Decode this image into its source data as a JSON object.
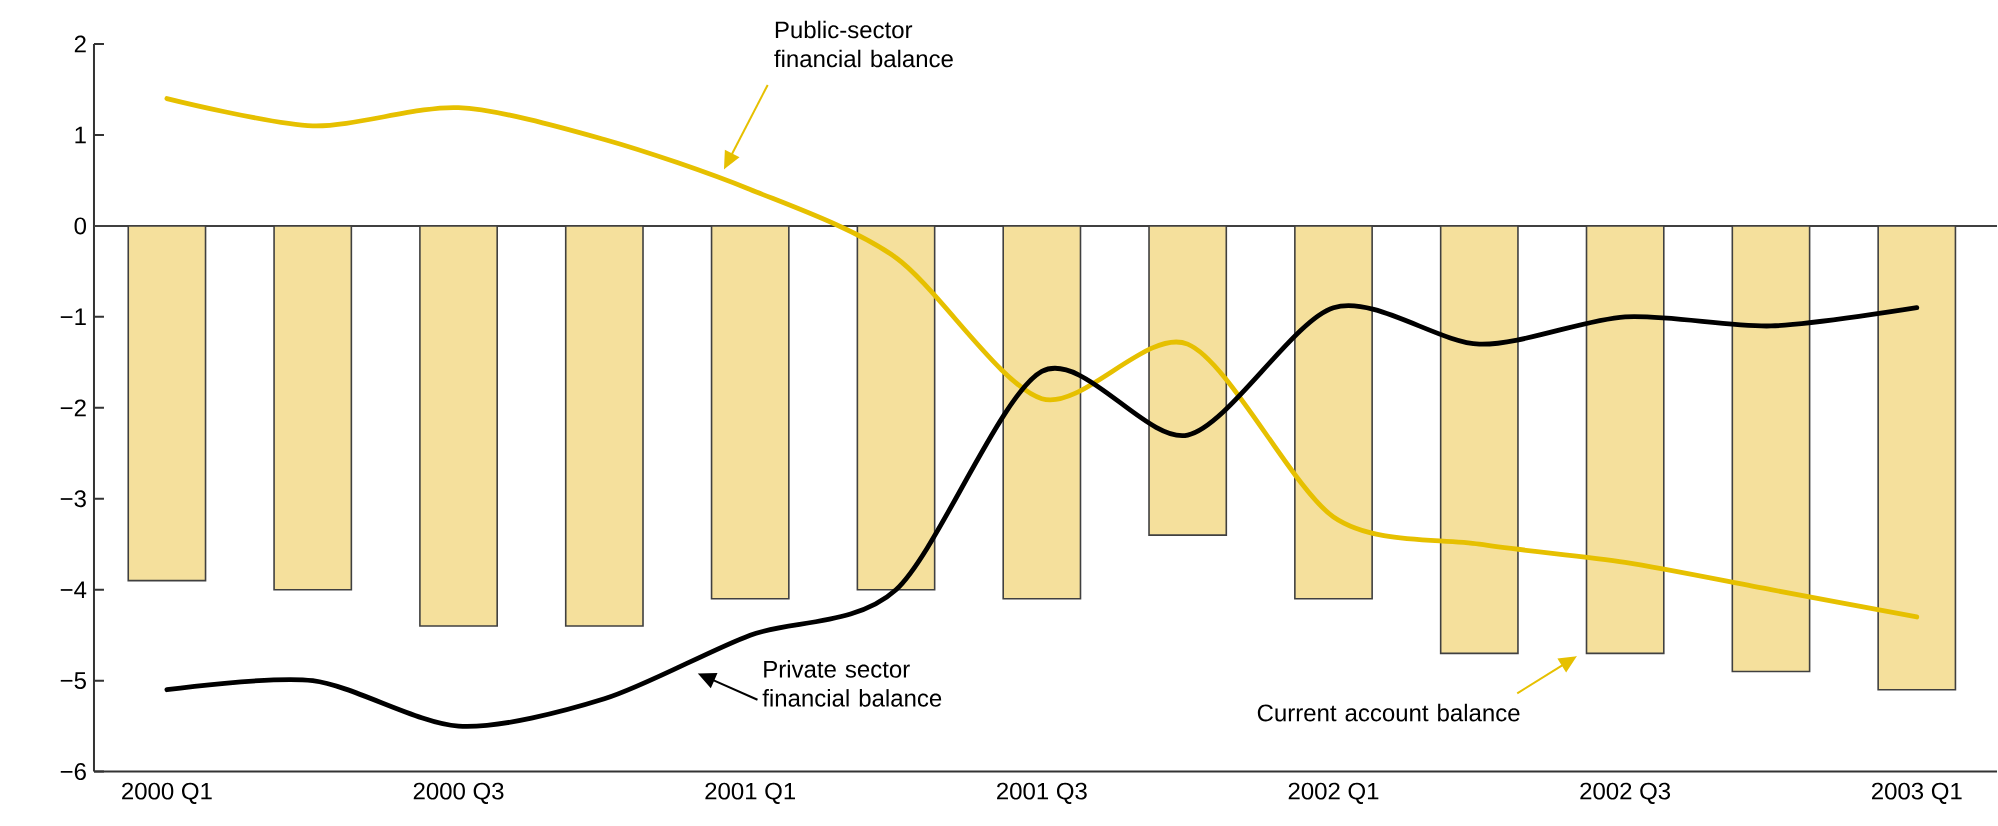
{
  "chart_data": {
    "type": "bar",
    "categories": [
      "2000 Q1",
      null,
      "2000 Q3",
      null,
      "2001 Q1",
      null,
      "2001 Q3",
      null,
      "2002 Q1",
      null,
      "2002 Q3",
      null,
      "2003 Q1"
    ],
    "series": [
      {
        "name": "Current account balance",
        "color": "#f5e09c",
        "values": [
          -3.9,
          -4.0,
          -4.4,
          -4.4,
          -4.1,
          -4.0,
          -4.1,
          -3.4,
          -4.1,
          -4.7,
          -4.7,
          -4.9,
          -5.1
        ]
      },
      {
        "name": "Public-sector financial balance",
        "type": "line",
        "color": "#e6c000",
        "values": [
          1.4,
          1.1,
          1.3,
          0.95,
          0.4,
          -0.35,
          -1.9,
          -1.3,
          -3.2,
          -3.5,
          -3.7,
          -4.0,
          -4.3
        ]
      },
      {
        "name": "Private sector financial balance",
        "type": "line",
        "color": "#000000",
        "values": [
          -5.1,
          -5.0,
          -5.5,
          -5.2,
          -4.5,
          -4.0,
          -1.6,
          -2.3,
          -0.9,
          -1.3,
          -1.0,
          -1.1,
          -0.9
        ]
      }
    ],
    "ylim": [
      -6,
      2
    ],
    "yticks": [
      {
        "value": -6,
        "label": "−6"
      },
      {
        "value": -5,
        "label": "−5"
      },
      {
        "value": -4,
        "label": "−4"
      },
      {
        "value": -3,
        "label": "−3"
      },
      {
        "value": -2,
        "label": "−2"
      },
      {
        "value": -1,
        "label": "−1"
      },
      0,
      1,
      2
    ]
  }
}
